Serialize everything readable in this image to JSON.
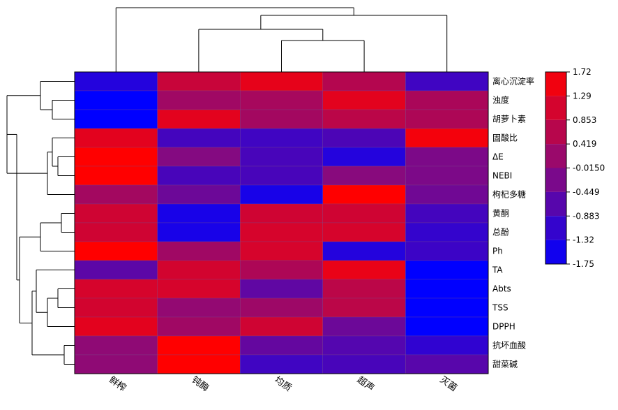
{
  "chart_data": {
    "type": "heatmap",
    "title": "",
    "rows": [
      "离心沉淀率",
      "浊度",
      "胡萝卜素",
      "固酸比",
      "ΔE",
      "NEBI",
      "枸杞多糖",
      "黄酮",
      "总酚",
      "Ph",
      "TA",
      "Abts",
      "TSS",
      "DPPH",
      "抗坏血酸",
      "甜菜碱"
    ],
    "columns": [
      "鲜榨",
      "钝酶",
      "均质",
      "超声",
      "灭菌"
    ],
    "values": [
      [
        -1.3,
        0.9,
        1.35,
        0.6,
        -0.95
      ],
      [
        -1.75,
        0.3,
        0.4,
        1.3,
        0.45
      ],
      [
        -1.75,
        1.3,
        0.35,
        0.7,
        0.5
      ],
      [
        1.3,
        -0.9,
        -0.95,
        -0.8,
        1.55
      ],
      [
        1.72,
        -0.1,
        -0.85,
        -1.3,
        -0.2
      ],
      [
        1.72,
        -0.85,
        -0.85,
        -0.05,
        -0.2
      ],
      [
        0.35,
        -0.4,
        -1.45,
        1.72,
        -0.35
      ],
      [
        1.0,
        -1.45,
        1.0,
        1.0,
        -0.9
      ],
      [
        1.0,
        -1.45,
        1.1,
        1.1,
        -1.1
      ],
      [
        1.72,
        0.3,
        1.1,
        -1.3,
        -1.0
      ],
      [
        -0.6,
        1.05,
        0.5,
        1.4,
        -1.75
      ],
      [
        1.1,
        1.1,
        -0.55,
        0.7,
        -1.75
      ],
      [
        1.05,
        0.1,
        0.25,
        0.7,
        -1.75
      ],
      [
        1.3,
        0.3,
        1.0,
        -0.4,
        -1.75
      ],
      [
        0.05,
        1.72,
        -0.5,
        -0.7,
        -1.15
      ],
      [
        0.05,
        1.72,
        -0.95,
        -0.85,
        -0.65
      ]
    ],
    "colorbar": {
      "ticks": [
        "1.72",
        "1.29",
        "0.853",
        "0.419",
        "-0.0150",
        "-0.449",
        "-0.883",
        "-1.32",
        "-1.75"
      ],
      "min": -1.75,
      "max": 1.72
    },
    "colors": {
      "high": "#ff0000",
      "mid": "#8b0a7a",
      "low": "#0000ff"
    },
    "dendrograms": {
      "rows": true,
      "columns": true
    }
  }
}
